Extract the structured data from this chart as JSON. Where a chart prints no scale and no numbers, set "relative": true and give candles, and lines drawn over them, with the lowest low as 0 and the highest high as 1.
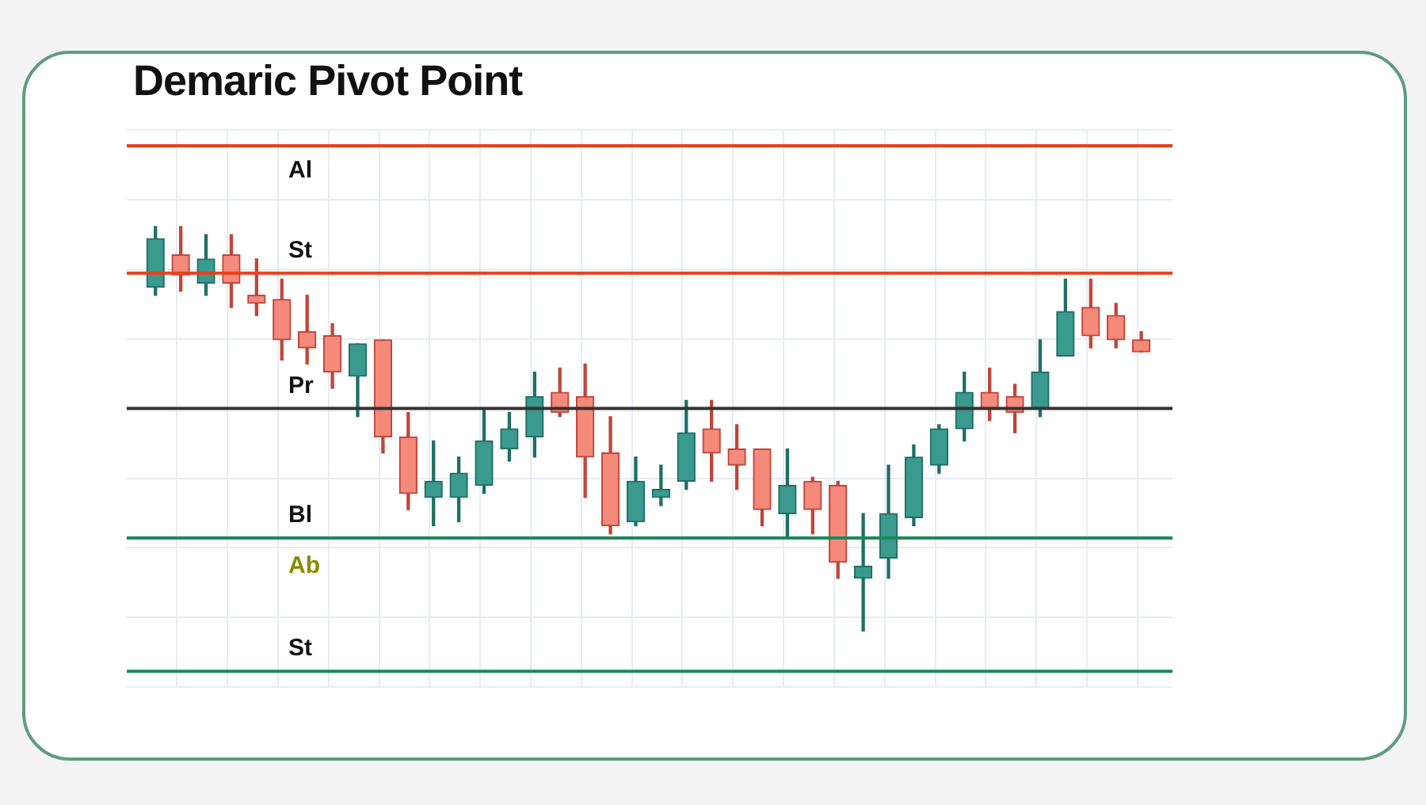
{
  "chart_data": {
    "type": "candlestick",
    "title": "Demaric Pivot Point",
    "relative": true,
    "grid": true,
    "legend": false,
    "categories": [
      null,
      null,
      null,
      null,
      null,
      null,
      null,
      null,
      null,
      null,
      null,
      null,
      null,
      null,
      null,
      null,
      null,
      null,
      null,
      null,
      null,
      null,
      null,
      null,
      null,
      null,
      null,
      null,
      null,
      null,
      null,
      null,
      null,
      null,
      null,
      null,
      null,
      null,
      null,
      null
    ],
    "ohlc": [
      [
        0.85,
        1.0,
        0.83,
        0.97
      ],
      [
        0.93,
        1.0,
        0.84,
        0.88
      ],
      [
        0.86,
        0.98,
        0.83,
        0.92
      ],
      [
        0.93,
        0.98,
        0.8,
        0.86
      ],
      [
        0.83,
        0.92,
        0.78,
        0.81
      ],
      [
        0.82,
        0.87,
        0.67,
        0.72
      ],
      [
        0.74,
        0.83,
        0.66,
        0.7
      ],
      [
        0.73,
        0.76,
        0.6,
        0.64
      ],
      [
        0.63,
        0.71,
        0.53,
        0.71
      ],
      [
        0.72,
        0.72,
        0.44,
        0.48
      ],
      [
        0.48,
        0.54,
        0.3,
        0.34
      ],
      [
        0.33,
        0.47,
        0.26,
        0.37
      ],
      [
        0.33,
        0.43,
        0.27,
        0.39
      ],
      [
        0.36,
        0.55,
        0.34,
        0.47
      ],
      [
        0.45,
        0.54,
        0.42,
        0.5
      ],
      [
        0.48,
        0.64,
        0.43,
        0.58
      ],
      [
        0.59,
        0.65,
        0.53,
        0.54
      ],
      [
        0.58,
        0.66,
        0.33,
        0.43
      ],
      [
        0.44,
        0.53,
        0.24,
        0.26
      ],
      [
        0.27,
        0.43,
        0.26,
        0.37
      ],
      [
        0.33,
        0.41,
        0.31,
        0.35
      ],
      [
        0.37,
        0.57,
        0.35,
        0.49
      ],
      [
        0.5,
        0.57,
        0.37,
        0.44
      ],
      [
        0.45,
        0.51,
        0.35,
        0.41
      ],
      [
        0.45,
        0.45,
        0.26,
        0.3
      ],
      [
        0.29,
        0.45,
        0.23,
        0.36
      ],
      [
        0.37,
        0.38,
        0.24,
        0.3
      ],
      [
        0.36,
        0.37,
        0.13,
        0.17
      ],
      [
        0.13,
        0.29,
        0.0,
        0.16
      ],
      [
        0.18,
        0.41,
        0.13,
        0.29
      ],
      [
        0.28,
        0.46,
        0.26,
        0.43
      ],
      [
        0.41,
        0.51,
        0.39,
        0.5
      ],
      [
        0.5,
        0.64,
        0.47,
        0.59
      ],
      [
        0.59,
        0.65,
        0.52,
        0.55
      ],
      [
        0.58,
        0.61,
        0.49,
        0.54
      ],
      [
        0.55,
        0.72,
        0.53,
        0.64
      ],
      [
        0.68,
        0.87,
        0.68,
        0.79
      ],
      [
        0.8,
        0.87,
        0.7,
        0.73
      ],
      [
        0.78,
        0.81,
        0.7,
        0.72
      ],
      [
        0.72,
        0.74,
        0.69,
        0.69
      ]
    ],
    "ref_lines": [
      {
        "axis": "y",
        "value": 1.2,
        "label": "Al",
        "color": "#e8401c"
      },
      {
        "axis": "y",
        "value": 0.885,
        "label": "St",
        "color": "#e8401c"
      },
      {
        "axis": "y",
        "value": 0.55,
        "label": "Pr",
        "color": "#333333"
      },
      {
        "axis": "y",
        "value": 0.23,
        "label": "Bl",
        "color": "#1a8a5a"
      },
      {
        "axis": "y",
        "value": -0.1,
        "label": "St",
        "color": "#1a8a5a"
      }
    ],
    "annotations": [
      "Ab"
    ]
  }
}
